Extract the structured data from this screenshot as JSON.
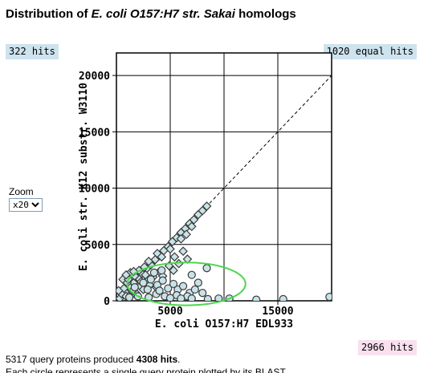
{
  "title": {
    "prefix": "Distribution of ",
    "organism": "E. coli O157:H7 str. Sakai",
    "suffix": " homologs"
  },
  "hits_left": "322 hits",
  "hits_right": "1020 equal hits",
  "hits_bottom": "2966 hits",
  "zoom": {
    "label": "Zoom",
    "value": "x20",
    "options": [
      "x20"
    ]
  },
  "summary": {
    "text": "5317 query proteins produced ",
    "count": "4308 hits",
    "end": ".",
    "cutoff_line": "Each circle represents a single query protein plotted by its BLAST"
  },
  "colors": {
    "point_fill": "#c8e3e8",
    "point_stroke": "#3a3a3a",
    "highlight_ellipse": "#4dd64d"
  },
  "chart_data": {
    "type": "scatter",
    "xlabel": "E. coli O157:H7 EDL933",
    "ylabel": "E. coli str. K12 substr. W3110",
    "xlim": [
      0,
      20000
    ],
    "ylim": [
      0,
      22000
    ],
    "x_ticks": [
      5000,
      15000
    ],
    "y_ticks": [
      0,
      5000,
      10000,
      15000,
      20000
    ],
    "grid": true,
    "diagonal": true,
    "highlight_ellipse": {
      "cx": 6500,
      "cy": 1500,
      "rx": 5500,
      "ry": 1900
    },
    "series": [
      {
        "marker": "diamond",
        "points": [
          [
            800,
            800
          ],
          [
            1200,
            1250
          ],
          [
            1600,
            1600
          ],
          [
            2000,
            2050
          ],
          [
            2400,
            2400
          ],
          [
            2800,
            2850
          ],
          [
            3200,
            3200
          ],
          [
            3600,
            3650
          ],
          [
            4000,
            4000
          ],
          [
            4400,
            4450
          ],
          [
            4800,
            4800
          ],
          [
            5200,
            5250
          ],
          [
            5600,
            5600
          ],
          [
            6000,
            6050
          ],
          [
            6400,
            6400
          ],
          [
            6800,
            6850
          ],
          [
            7200,
            7200
          ],
          [
            7600,
            7650
          ],
          [
            8000,
            8000
          ],
          [
            8400,
            8400
          ],
          [
            600,
            1900
          ],
          [
            1300,
            2500
          ],
          [
            1700,
            2200
          ],
          [
            2100,
            2700
          ],
          [
            1000,
            1600
          ],
          [
            2600,
            3000
          ],
          [
            3000,
            3500
          ],
          [
            3800,
            4200
          ],
          [
            4200,
            3900
          ],
          [
            5000,
            4600
          ],
          [
            6000,
            5500
          ],
          [
            6500,
            5900
          ],
          [
            7000,
            6600
          ],
          [
            1400,
            500
          ],
          [
            2200,
            1300
          ],
          [
            2800,
            1800
          ],
          [
            3400,
            2100
          ],
          [
            4000,
            2600
          ],
          [
            300,
            200
          ],
          [
            500,
            600
          ],
          [
            900,
            400
          ],
          [
            1800,
            700
          ],
          [
            2500,
            1000
          ],
          [
            3100,
            1400
          ],
          [
            3700,
            1200
          ],
          [
            4300,
            2200
          ],
          [
            4900,
            3100
          ],
          [
            5300,
            2700
          ],
          [
            5800,
            3300
          ],
          [
            1100,
            1900
          ],
          [
            700,
            1100
          ],
          [
            1500,
            900
          ],
          [
            2300,
            1700
          ],
          [
            2700,
            2300
          ],
          [
            200,
            900
          ],
          [
            900,
            2300
          ],
          [
            1600,
            2600
          ],
          [
            5400,
            3900
          ],
          [
            6200,
            4400
          ],
          [
            6600,
            3700
          ]
        ]
      },
      {
        "marker": "circle",
        "points": [
          [
            2500,
            1600
          ],
          [
            3200,
            1900
          ],
          [
            3800,
            1400
          ],
          [
            4300,
            1800
          ],
          [
            4800,
            1100
          ],
          [
            5300,
            1500
          ],
          [
            5700,
            1000
          ],
          [
            6200,
            1300
          ],
          [
            6800,
            700
          ],
          [
            7300,
            1000
          ],
          [
            3700,
            600
          ],
          [
            4500,
            400
          ],
          [
            5600,
            500
          ],
          [
            6600,
            400
          ],
          [
            7600,
            1600
          ],
          [
            8400,
            2900
          ],
          [
            7000,
            2300
          ],
          [
            3000,
            300
          ],
          [
            4000,
            900
          ],
          [
            8000,
            700
          ],
          [
            9500,
            200
          ],
          [
            10500,
            200
          ],
          [
            13000,
            100
          ],
          [
            15500,
            150
          ],
          [
            19800,
            350
          ],
          [
            2000,
            400
          ],
          [
            2900,
            1000
          ],
          [
            5000,
            250
          ],
          [
            6000,
            200
          ],
          [
            7000,
            200
          ],
          [
            8500,
            150
          ],
          [
            1200,
            300
          ],
          [
            1700,
            1200
          ],
          [
            3500,
            2500
          ],
          [
            4200,
            2700
          ]
        ]
      }
    ]
  }
}
